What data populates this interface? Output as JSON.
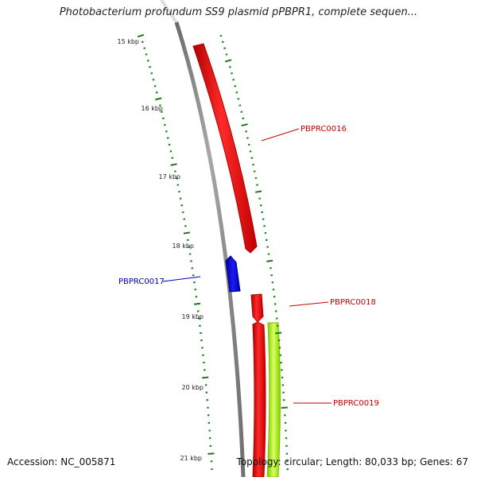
{
  "title": "Photobacterium profundum SS9 plasmid pPBPR1, complete sequen...",
  "footer": {
    "accession": "Accession: NC_005871",
    "topology": "Topology: circular; Length: 80,033 bp; Genes: 67"
  },
  "ticks": [
    {
      "label": "15 kbp"
    },
    {
      "label": "16 kbp"
    },
    {
      "label": "17 kbp"
    },
    {
      "label": "18 kbp"
    },
    {
      "label": "19 kbp"
    },
    {
      "label": "20 kbp"
    },
    {
      "label": "21 kbp"
    }
  ],
  "genes": [
    {
      "name": "PBPRC0016",
      "strand": "forward",
      "color": "#ff0000"
    },
    {
      "name": "PBPRC0017",
      "strand": "reverse",
      "color": "#0000ee"
    },
    {
      "name": "PBPRC0018",
      "strand": "forward",
      "color": "#ff0000"
    },
    {
      "name": "PBPRC0019",
      "strand": "forward",
      "color": "#ff0000",
      "feature_color": "#adff2f"
    }
  ],
  "colors": {
    "backbone": "#808080",
    "tick": "#1a7a1a",
    "forward_label": "#cc0000",
    "reverse_label": "#0000bb"
  }
}
